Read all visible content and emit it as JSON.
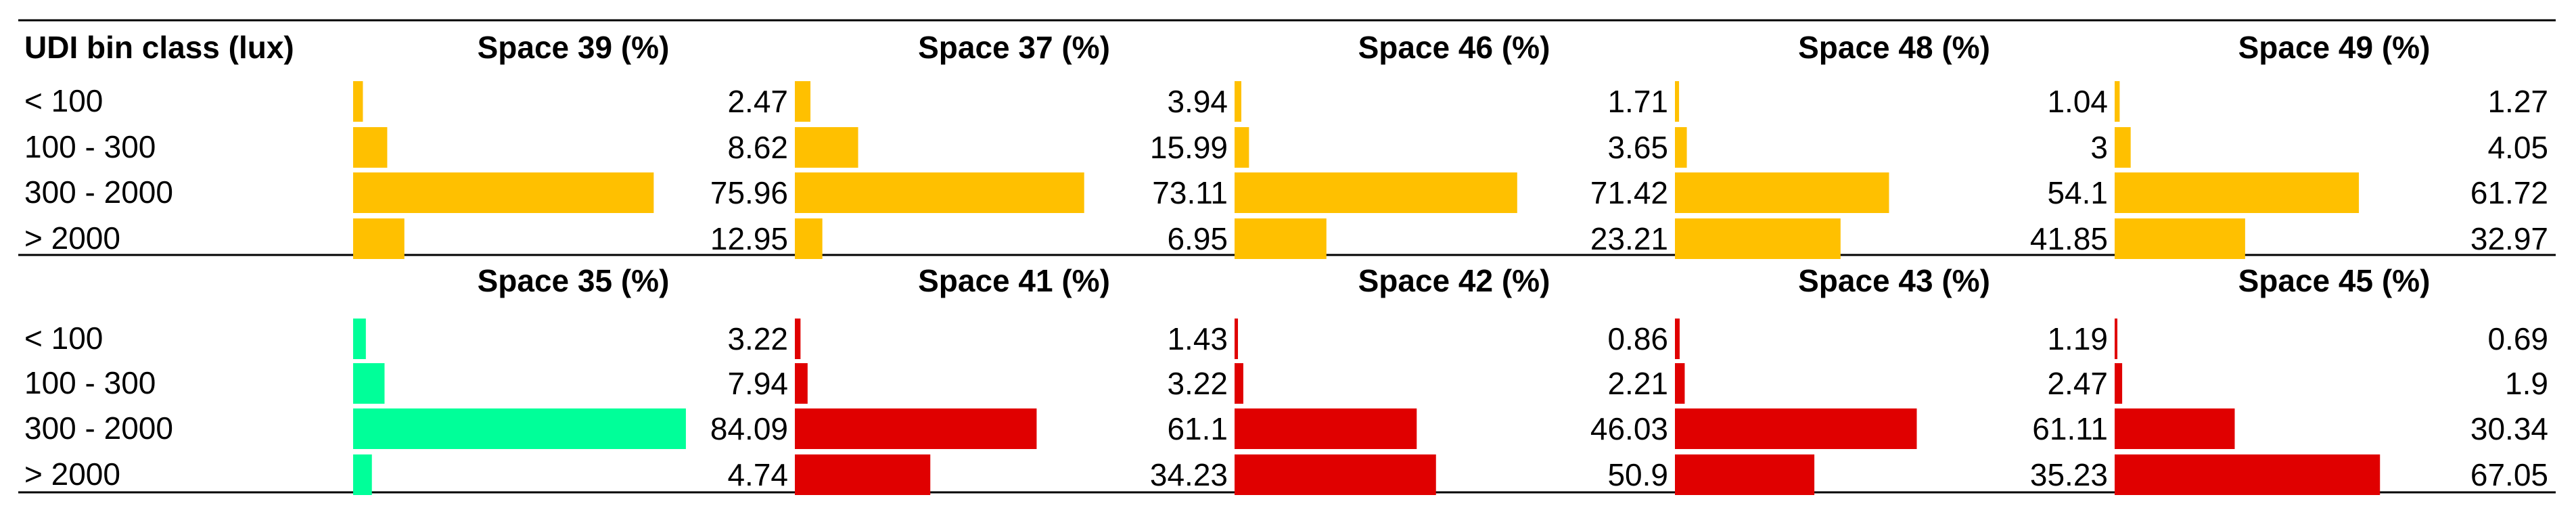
{
  "chart_data": {
    "type": "table",
    "header_label": "UDI bin class (lux)",
    "row_labels": [
      "< 100",
      "100 - 300",
      "300 - 2000",
      "> 2000"
    ],
    "value_max": 100,
    "colors": {
      "yellow": "#FFC000",
      "green": "#00FF99",
      "red": "#E00000",
      "rule": "#000000"
    },
    "groups": [
      {
        "spaces": [
          {
            "name": "Space 39 (%)",
            "color": "yellow",
            "values": [
              "2.47",
              "8.62",
              "75.96",
              "12.95"
            ]
          },
          {
            "name": "Space 37 (%)",
            "color": "yellow",
            "values": [
              "3.94",
              "15.99",
              "73.11",
              "6.95"
            ]
          },
          {
            "name": "Space 46 (%)",
            "color": "yellow",
            "values": [
              "1.71",
              "3.65",
              "71.42",
              "23.21"
            ]
          },
          {
            "name": "Space 48 (%)",
            "color": "yellow",
            "values": [
              "1.04",
              "3",
              "54.1",
              "41.85"
            ]
          },
          {
            "name": "Space 49 (%)",
            "color": "yellow",
            "values": [
              "1.27",
              "4.05",
              "61.72",
              "32.97"
            ]
          }
        ]
      },
      {
        "spaces": [
          {
            "name": "Space 35 (%)",
            "color": "green",
            "values": [
              "3.22",
              "7.94",
              "84.09",
              "4.74"
            ]
          },
          {
            "name": "Space 41 (%)",
            "color": "red",
            "values": [
              "1.43",
              "3.22",
              "61.1",
              "34.23"
            ]
          },
          {
            "name": "Space 42 (%)",
            "color": "red",
            "values": [
              "0.86",
              "2.21",
              "46.03",
              "50.9"
            ]
          },
          {
            "name": "Space 43 (%)",
            "color": "red",
            "values": [
              "1.19",
              "2.47",
              "61.11",
              "35.23"
            ]
          },
          {
            "name": "Space 45 (%)",
            "color": "red",
            "values": [
              "0.69",
              "1.9",
              "30.34",
              "67.05"
            ]
          }
        ]
      }
    ]
  }
}
